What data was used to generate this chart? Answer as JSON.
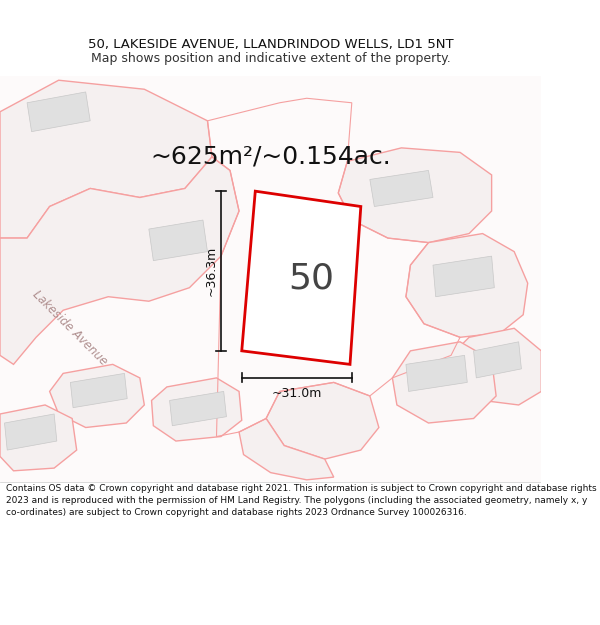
{
  "title_line1": "50, LAKESIDE AVENUE, LLANDRINDOD WELLS, LD1 5NT",
  "title_line2": "Map shows position and indicative extent of the property.",
  "area_text": "~625m²/~0.154ac.",
  "label_50": "50",
  "dim_width": "~31.0m",
  "dim_height": "~36.3m",
  "footer_text": "Contains OS data © Crown copyright and database right 2021. This information is subject to Crown copyright and database rights 2023 and is reproduced with the permission of HM Land Registry. The polygons (including the associated geometry, namely x, y co-ordinates) are subject to Crown copyright and database rights 2023 Ordnance Survey 100026316.",
  "street_label": "Lakeside Avenue",
  "bg_color": "#ffffff",
  "highlight_color": "#dd0000",
  "neighbor_ec": "#f5a0a0",
  "neighbor_fc": "#f5f0f0",
  "building_fc": "#e0e0e0",
  "building_ec": "#c8c8c8"
}
